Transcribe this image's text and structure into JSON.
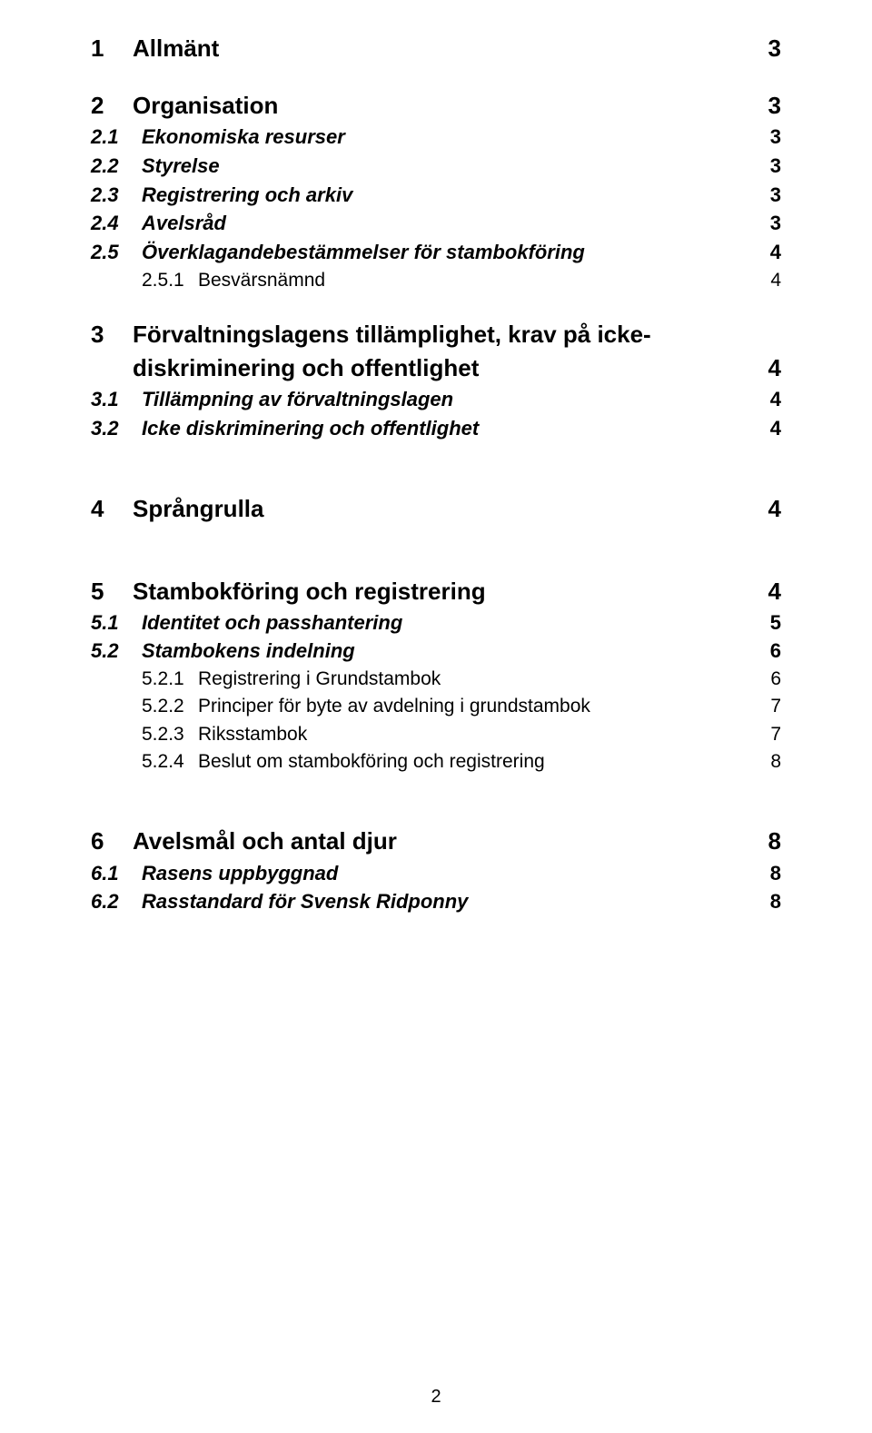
{
  "toc": [
    {
      "level": 1,
      "num": "1",
      "title": "Allmänt",
      "page": "3",
      "gap": "none"
    },
    {
      "level": 1,
      "num": "2",
      "title": "Organisation",
      "page": "3",
      "gap": "section"
    },
    {
      "level": 2,
      "num": "2.1",
      "title": "Ekonomiska resurser",
      "page": "3",
      "gap": "none"
    },
    {
      "level": 2,
      "num": "2.2",
      "title": "Styrelse",
      "page": "3",
      "gap": "none"
    },
    {
      "level": 2,
      "num": "2.3",
      "title": "Registrering och arkiv",
      "page": "3",
      "gap": "none"
    },
    {
      "level": 2,
      "num": "2.4",
      "title": "Avelsråd",
      "page": "3",
      "gap": "none"
    },
    {
      "level": 2,
      "num": "2.5",
      "title": "Överklagandebestämmelser för stambokföring",
      "page": "4",
      "gap": "none"
    },
    {
      "level": 3,
      "num": "2.5.1",
      "title": "Besvärsnämnd",
      "page": "4",
      "gap": "none"
    },
    {
      "level": 1,
      "num": "3",
      "title": "Förvaltningslagens tillämplighet, krav på icke-",
      "page": "",
      "gap": "section",
      "noPage": true
    },
    {
      "level": 1,
      "num": "",
      "title": "diskriminering och offentlighet",
      "page": "4",
      "gap": "none",
      "continuation": true
    },
    {
      "level": 2,
      "num": "3.1",
      "title": "Tillämpning av förvaltningslagen",
      "page": "4",
      "gap": "none"
    },
    {
      "level": 2,
      "num": "3.2",
      "title": "Icke diskriminering och offentlighet",
      "page": "4",
      "gap": "none"
    },
    {
      "level": 1,
      "num": "4",
      "title": "Språngrulla",
      "page": "4",
      "gap": "big"
    },
    {
      "level": 1,
      "num": "5",
      "title": "Stambokföring och registrering",
      "page": "4",
      "gap": "big"
    },
    {
      "level": 2,
      "num": "5.1",
      "title": "Identitet och passhantering",
      "page": "5",
      "gap": "none"
    },
    {
      "level": 2,
      "num": "5.2",
      "title": "Stambokens indelning",
      "page": "6",
      "gap": "none"
    },
    {
      "level": 3,
      "num": "5.2.1",
      "title": "Registrering i Grundstambok",
      "page": "6",
      "gap": "none"
    },
    {
      "level": 3,
      "num": "5.2.2",
      "title": "Principer för byte av avdelning i grundstambok",
      "page": "7",
      "gap": "none"
    },
    {
      "level": 3,
      "num": "5.2.3",
      "title": "Riksstambok",
      "page": "7",
      "gap": "none"
    },
    {
      "level": 3,
      "num": "5.2.4",
      "title": "Beslut om stambokföring och registrering",
      "page": "8",
      "gap": "none"
    },
    {
      "level": 1,
      "num": "6",
      "title": "Avelsmål och antal djur",
      "page": "8",
      "gap": "big"
    },
    {
      "level": 2,
      "num": "6.1",
      "title": "Rasens uppbyggnad",
      "page": "8",
      "gap": "none"
    },
    {
      "level": 2,
      "num": "6.2",
      "title": "Rasstandard för Svensk Ridponny",
      "page": "8",
      "gap": "none"
    }
  ],
  "footerPage": "2"
}
